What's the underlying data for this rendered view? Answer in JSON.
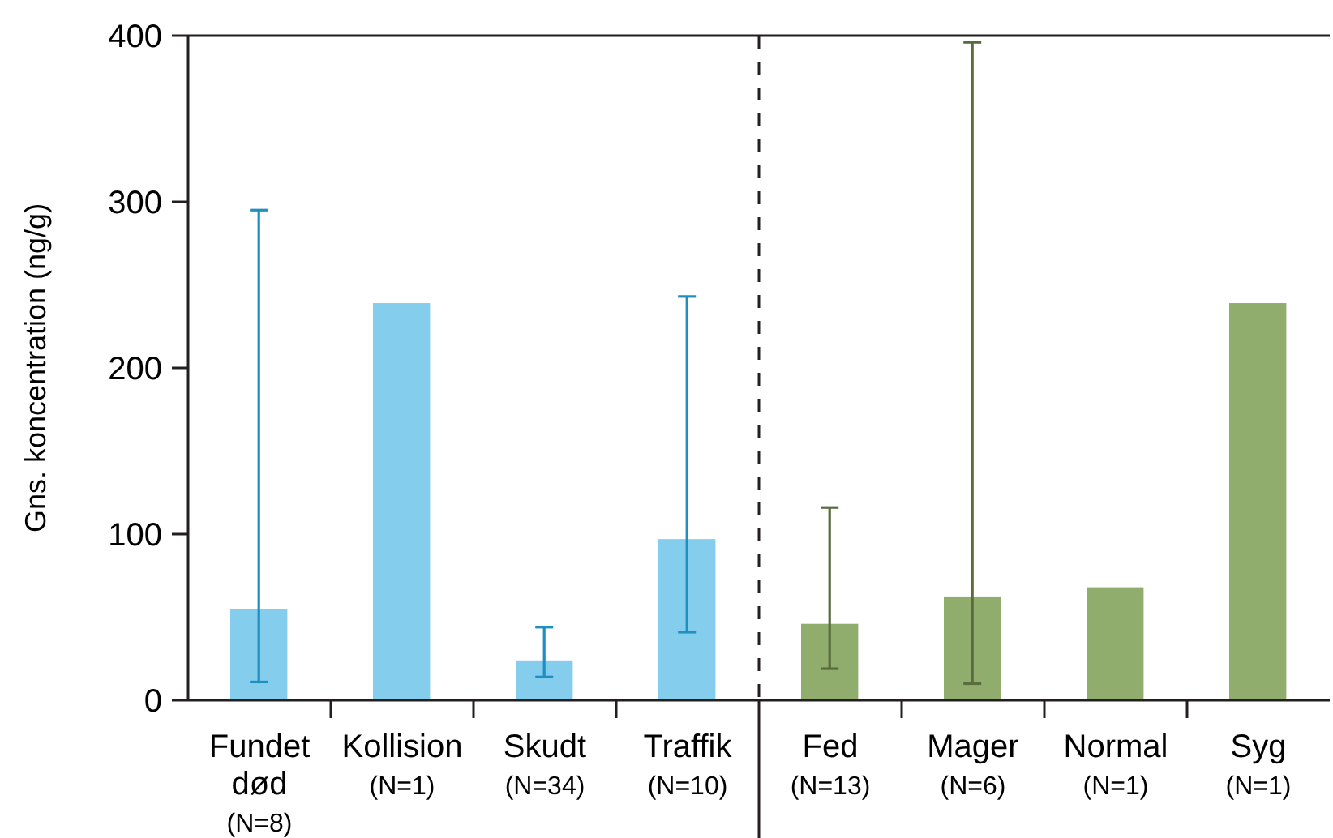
{
  "chart_data": {
    "type": "bar",
    "ylabel": "Gns. koncentration (ng/g)",
    "categories": [
      "Fundet\ndød\n(N=8)",
      "Kollision\n(N=1)",
      "Skudt\n(N=34)",
      "Traffik\n(N=10)",
      "Fed\n(N=13)",
      "Mager\n(N=6)",
      "Normal\n(N=1)",
      "Syg\n(N=1)"
    ],
    "values": [
      55,
      239,
      24,
      97,
      46,
      62,
      68,
      239
    ],
    "colors": [
      "#85cdec",
      "#85cdec",
      "#85cdec",
      "#85cdec",
      "#91ad6e",
      "#91ad6e",
      "#91ad6e",
      "#91ad6e"
    ],
    "errors": [
      [
        11,
        295
      ],
      null,
      [
        14,
        44
      ],
      [
        41,
        243
      ],
      [
        19,
        116
      ],
      [
        10,
        396
      ],
      null,
      null
    ],
    "ylim": [
      0,
      400
    ],
    "yticks": [
      0,
      100,
      200,
      300,
      400
    ]
  }
}
